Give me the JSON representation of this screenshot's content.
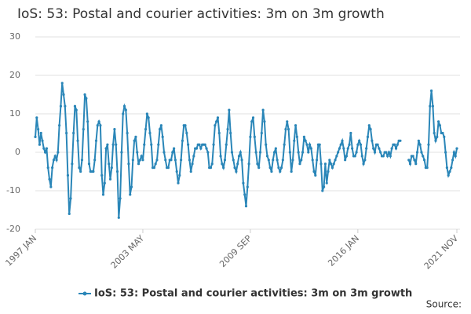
{
  "chart_data": {
    "type": "line",
    "title": "IoS: 53: Postal and courier activities: 3m on 3m growth",
    "source": "Source:",
    "categories": [
      "1997 JAN",
      null,
      null,
      null,
      null,
      null,
      null,
      null,
      null,
      null,
      null,
      null,
      null,
      null,
      null,
      null,
      null,
      null,
      null,
      null,
      null,
      null,
      null,
      null,
      null,
      null,
      null,
      null,
      null,
      null,
      null,
      null,
      null,
      null,
      null,
      null,
      null,
      null,
      null,
      null,
      null,
      null,
      null,
      null,
      null,
      null,
      null,
      null,
      null,
      null,
      null,
      null,
      null,
      null,
      null,
      null,
      null,
      null,
      null,
      null,
      null,
      null,
      null,
      null,
      null,
      null,
      null,
      null,
      null,
      null,
      null,
      null,
      null,
      null,
      null,
      null,
      "2003 MAY",
      null,
      null,
      null,
      null,
      null,
      null,
      null,
      null,
      null,
      null,
      null,
      null,
      null,
      null,
      null,
      null,
      null,
      null,
      null,
      null,
      null,
      null,
      null,
      null,
      null,
      null,
      null,
      null,
      null,
      null,
      null,
      null,
      null,
      null,
      null,
      null,
      null,
      null,
      null,
      null,
      null,
      null,
      null,
      null,
      null,
      null,
      null,
      null,
      null,
      null,
      null,
      null,
      null,
      null,
      null,
      null,
      null,
      null,
      null,
      null,
      null,
      null,
      null,
      null,
      null,
      null,
      null,
      null,
      null,
      null,
      null,
      null,
      null,
      null,
      null,
      "2009 SEP",
      null,
      null,
      null,
      null,
      null,
      null,
      null,
      null,
      null,
      null,
      null,
      null,
      null,
      null,
      null,
      null,
      null,
      null,
      null,
      null,
      null,
      null,
      null,
      null,
      null,
      null,
      null,
      null,
      null,
      null,
      null,
      null,
      null,
      null,
      null,
      null,
      null,
      null,
      null,
      null,
      null,
      null,
      null,
      null,
      null,
      null,
      null,
      null,
      null,
      null,
      null,
      null,
      null,
      null,
      null,
      null,
      null,
      null,
      null,
      null,
      null,
      null,
      null,
      null,
      null,
      null,
      null,
      null,
      null,
      null,
      null,
      null,
      null,
      null,
      null,
      "2016 JAN",
      null,
      null,
      null,
      null,
      null,
      null,
      null,
      null,
      null,
      null,
      null,
      null,
      null,
      null,
      null,
      null,
      null,
      null,
      null,
      null,
      null,
      null,
      null,
      null,
      null,
      null,
      null,
      null,
      null,
      null,
      null,
      null,
      null,
      null,
      null,
      null,
      null,
      null,
      null,
      null,
      null,
      null,
      null,
      null,
      null,
      null,
      null,
      null,
      null,
      null,
      null,
      null,
      null,
      null,
      null,
      null,
      null,
      null,
      null,
      null,
      null,
      null,
      null,
      null,
      null,
      null,
      null,
      null,
      null,
      "2021 NOV"
    ],
    "series": [
      {
        "name": "IoS: 53: Postal and courier activities: 3m on 3m growth",
        "color": "#2a86b8",
        "values": [
          4,
          9,
          6,
          2,
          5,
          3,
          1,
          0,
          1,
          -4,
          -7,
          -9,
          -4,
          -2,
          -1,
          -2,
          0,
          7,
          12,
          18,
          15,
          12,
          5,
          -6,
          -16,
          -12,
          -3,
          5,
          12,
          11,
          3,
          -4,
          -5,
          -2,
          6,
          15,
          14,
          8,
          -3,
          -5,
          -5,
          -5,
          -2,
          3,
          7,
          8,
          7,
          -6,
          -11,
          -8,
          1,
          2,
          -3,
          -7,
          -4,
          2,
          6,
          2,
          -5,
          -17,
          -12,
          0,
          10,
          12,
          11,
          5,
          -3,
          -11,
          -9,
          -2,
          3,
          4,
          0,
          -3,
          -2,
          -1,
          -2,
          2,
          6,
          10,
          9,
          5,
          2,
          -4,
          -4,
          -3,
          -2,
          2,
          6,
          7,
          4,
          0,
          -2,
          -4,
          -4,
          -2,
          -2,
          0,
          1,
          -2,
          -5,
          -8,
          -6,
          -2,
          3,
          7,
          7,
          5,
          2,
          -2,
          -5,
          -3,
          -1,
          1,
          1,
          2,
          2,
          1,
          2,
          2,
          2,
          1,
          0,
          -4,
          -4,
          -3,
          2,
          7,
          8,
          9,
          5,
          -1,
          -3,
          -4,
          -2,
          2,
          6,
          11,
          5,
          0,
          -2,
          -4,
          -5,
          -3,
          -1,
          0,
          -2,
          -8,
          -11,
          -14,
          -9,
          -3,
          4,
          8,
          9,
          4,
          0,
          -3,
          -4,
          0,
          5,
          11,
          8,
          2,
          -1,
          -2,
          -4,
          -5,
          -2,
          0,
          1,
          -2,
          -4,
          -5,
          -4,
          -2,
          2,
          6,
          8,
          6,
          0,
          -5,
          -2,
          3,
          7,
          4,
          0,
          -3,
          -2,
          0,
          4,
          3,
          2,
          0,
          2,
          1,
          -2,
          -5,
          -6,
          -2,
          2,
          2,
          -3,
          -10,
          -9,
          -3,
          -8,
          -5,
          -2,
          -3,
          -4,
          -3,
          -2,
          -1,
          0,
          1,
          2,
          3,
          1,
          -2,
          -1,
          1,
          2,
          5,
          1,
          -1,
          -1,
          0,
          2,
          3,
          2,
          -1,
          -3,
          -2,
          1,
          4,
          7,
          6,
          3,
          1,
          0,
          2,
          2,
          1,
          0,
          -1,
          -1,
          0,
          0,
          -1,
          0,
          -1,
          1,
          2,
          2,
          1,
          2,
          3,
          3,
          null,
          null,
          null,
          null,
          null,
          -2,
          -3,
          -1,
          -1,
          -2,
          -3,
          0,
          3,
          2,
          0,
          -1,
          -2,
          -4,
          -4,
          2,
          12,
          16,
          12,
          5,
          3,
          4,
          8,
          7,
          5,
          5,
          4,
          0,
          -4,
          -6,
          -5,
          -4,
          -2,
          0,
          -1,
          1
        ]
      }
    ],
    "ylim": [
      -20,
      30
    ],
    "yticks": [
      -20,
      -10,
      0,
      10,
      20,
      30
    ],
    "grid": true,
    "legend": "bottom"
  }
}
